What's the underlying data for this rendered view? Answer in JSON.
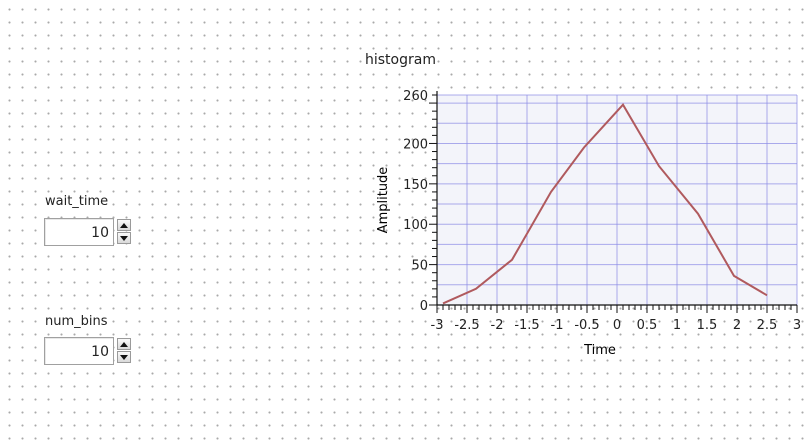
{
  "controls": {
    "wait_time": {
      "label": "wait_time",
      "value": "10"
    },
    "num_bins": {
      "label": "num_bins",
      "value": "10"
    }
  },
  "graph": {
    "title": "histogram"
  },
  "colors": {
    "plot_bg": "#f3f4fa",
    "grid": "#8a8ae6",
    "series": "#b05a5e"
  },
  "chart_data": {
    "type": "line",
    "xlabel": "Time",
    "ylabel": "Amplitude",
    "xlim": [
      -3,
      3
    ],
    "ylim": [
      0,
      260
    ],
    "grid": true,
    "x_ticks": [
      -3,
      -2.5,
      -2,
      -1.5,
      -1,
      -0.5,
      0,
      0.5,
      1,
      1.5,
      2,
      2.5,
      3
    ],
    "y_ticks": [
      0,
      50,
      100,
      150,
      200,
      260
    ],
    "x_tick_labels": [
      "-3",
      "-2.5",
      "-2",
      "-1.5",
      "-1",
      "-0.5",
      "0",
      "0.5",
      "1",
      "1.5",
      "2",
      "2.5",
      "3"
    ],
    "y_tick_labels": [
      "0",
      "50",
      "100",
      "150",
      "200",
      "260"
    ],
    "series": [
      {
        "x": [
          -2.9,
          -2.35,
          -1.75,
          -1.1,
          -0.55,
          0.1,
          0.7,
          1.35,
          1.95,
          2.5
        ],
        "y": [
          2,
          20,
          56,
          140,
          195,
          248,
          172,
          113,
          36,
          12
        ]
      }
    ]
  }
}
